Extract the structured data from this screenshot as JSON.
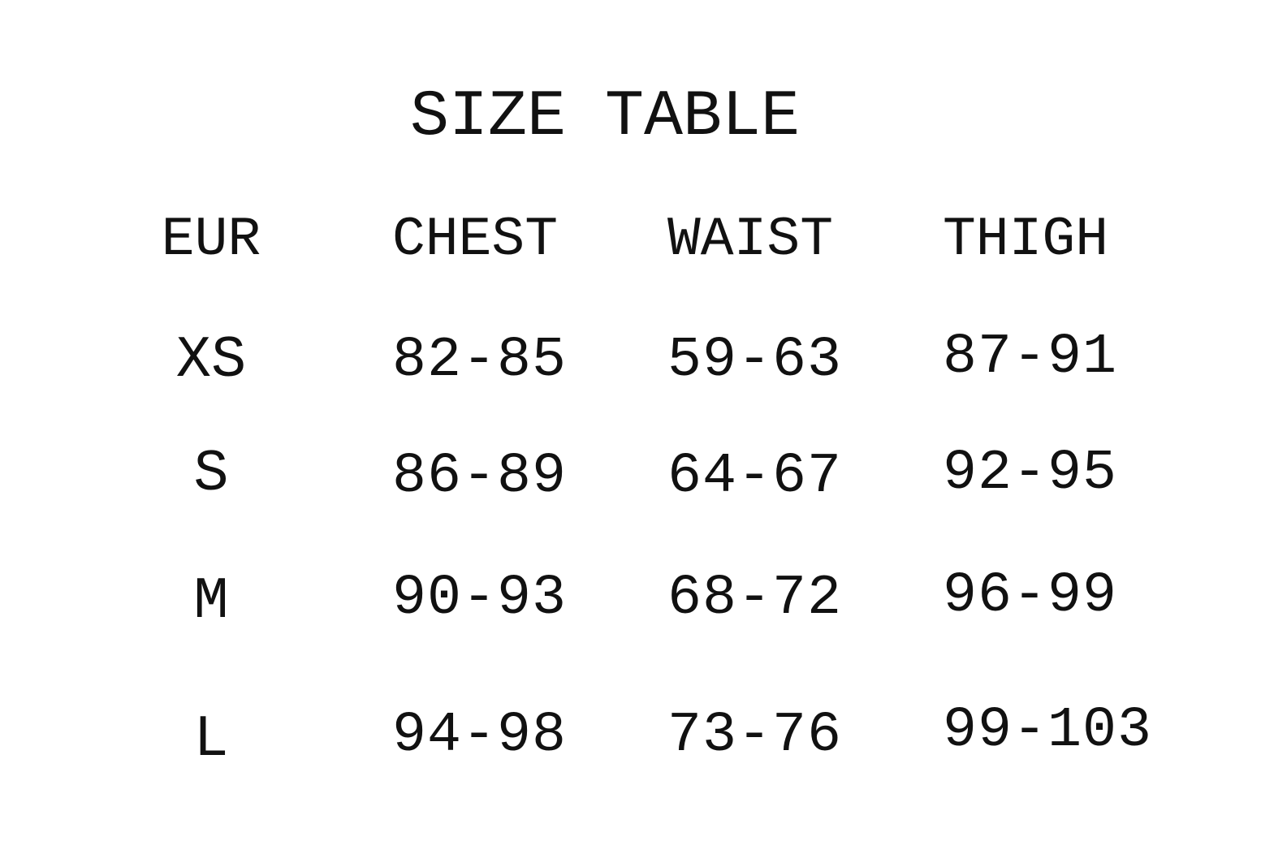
{
  "title": "SIZE TABLE",
  "columns": [
    "EUR",
    "CHEST",
    "WAIST",
    "THIGH"
  ],
  "rows": [
    {
      "size": "XS",
      "chest": "82-85",
      "waist": "59-63",
      "thigh": "87-91"
    },
    {
      "size": "S",
      "chest": "86-89",
      "waist": "64-67",
      "thigh": "92-95"
    },
    {
      "size": "M",
      "chest": "90-93",
      "waist": "68-72",
      "thigh": "96-99"
    },
    {
      "size": "L",
      "chest": "94-98",
      "waist": "73-76",
      "thigh": "99-103"
    }
  ]
}
